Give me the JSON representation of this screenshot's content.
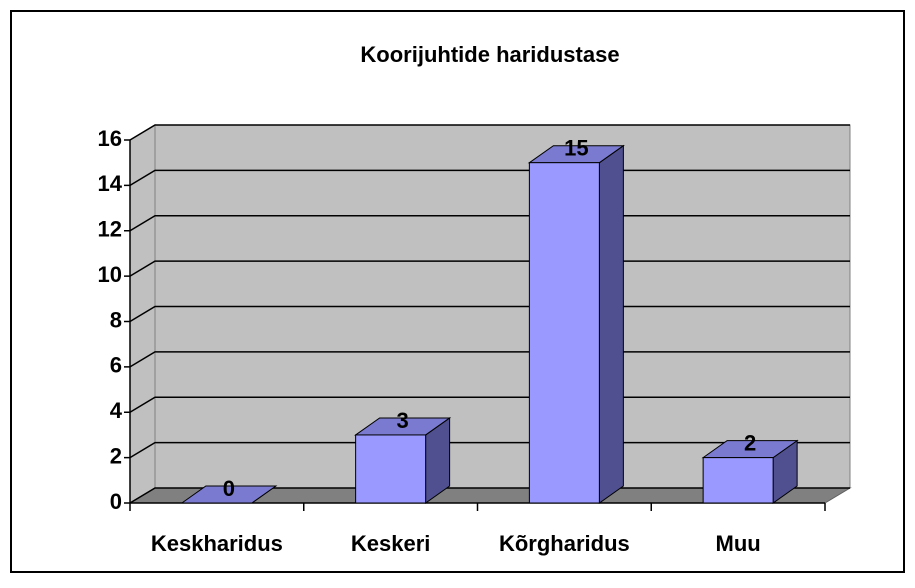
{
  "chart_data": {
    "type": "bar3d",
    "title": "Koorijuhtide haridustase",
    "categories": [
      "Keskharidus",
      "Keskeri",
      "Kõrgharidus",
      "Muu"
    ],
    "values": [
      0,
      3,
      15,
      2
    ],
    "color": "#9999ff",
    "ylim": [
      0,
      16
    ],
    "yticks": [
      0,
      2,
      4,
      6,
      8,
      10,
      12,
      14,
      16
    ],
    "grid": true,
    "data_labels": true
  }
}
